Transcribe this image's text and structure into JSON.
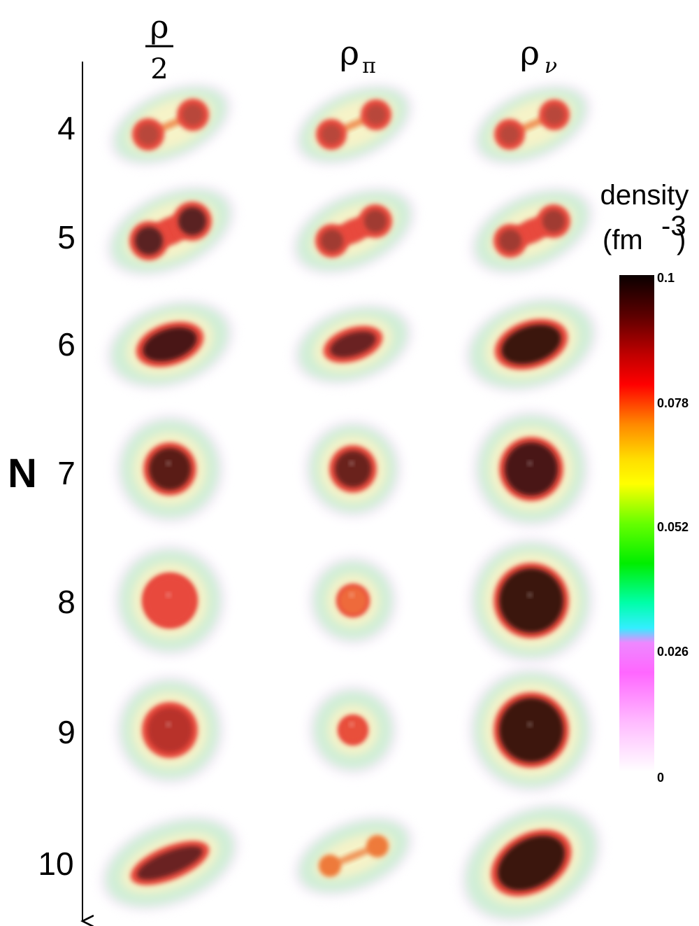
{
  "figure": {
    "axis_label": "N",
    "columns": [
      {
        "id": "half_rho",
        "symbol": "ρ",
        "denominator": "2"
      },
      {
        "id": "rho_pi",
        "symbol": "ρ",
        "subscript": "π"
      },
      {
        "id": "rho_nu",
        "symbol": "ρ",
        "subscript": "ν"
      }
    ],
    "rows": [
      {
        "label": "4",
        "shape": "dumbbell"
      },
      {
        "label": "5",
        "shape": "dumbbell"
      },
      {
        "label": "6",
        "shape": "elongated"
      },
      {
        "label": "7",
        "shape": "spherical"
      },
      {
        "label": "8",
        "shape": "spherical"
      },
      {
        "label": "9",
        "shape": "spherical"
      },
      {
        "label": "10",
        "shape": "elongated"
      }
    ],
    "colorbar": {
      "title": "density",
      "unit_base": "(fm",
      "unit_exp": "-3",
      "unit_close": ")",
      "ticks": [
        "0.1",
        "0.078",
        "0.052",
        "0.026",
        "0"
      ],
      "colors": {
        "max": "#1a0000",
        "high": "#ff0000",
        "mid_high": "#ffaa00",
        "mid": "#ffff00",
        "mid_low": "#00ee00",
        "low": "#00e5ff",
        "lower": "#ff66ff",
        "min": "#ffffff"
      }
    }
  }
}
